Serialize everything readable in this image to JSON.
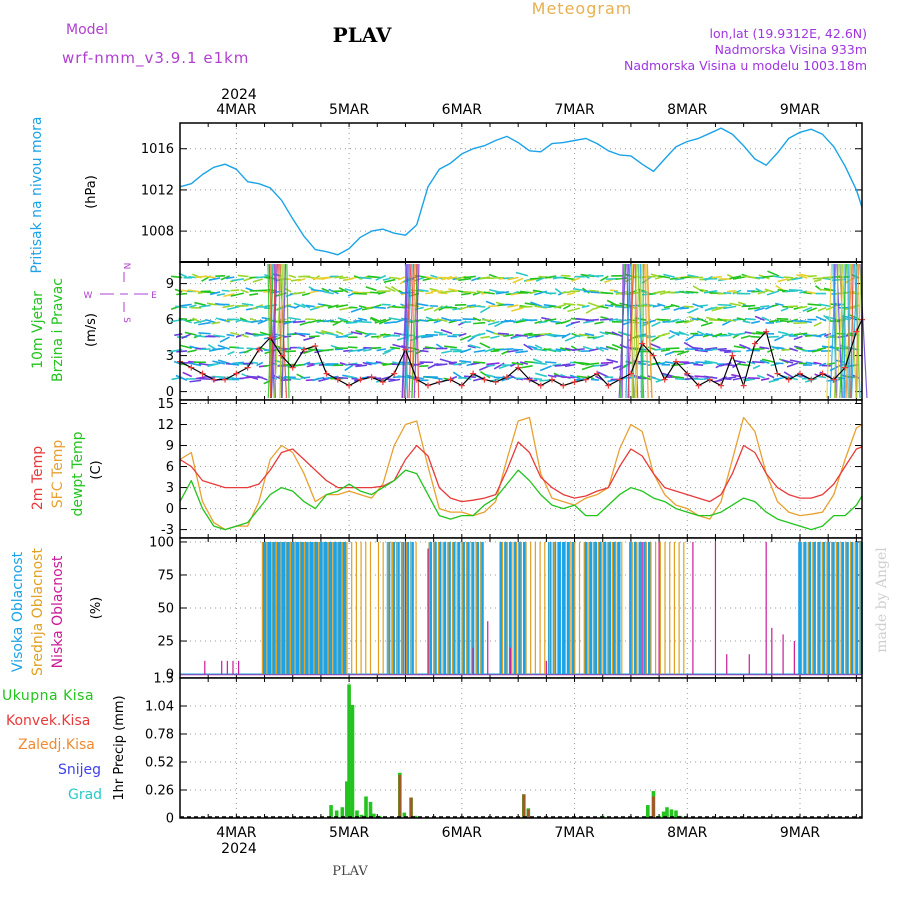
{
  "header": {
    "model_label": "Model",
    "model_name": "wrf-nmm_v3.9.1 e1km",
    "station": "PLAV",
    "meteogram_label": "Meteogram",
    "lonlat": "lon,lat (19.9312E, 42.6N)",
    "elevation": "Nadmorska Visina 933m",
    "model_elevation": "Nadmorska Visina u modelu 1003.18m"
  },
  "footer": {
    "station": "PLAV",
    "watermark": "made by Angel"
  },
  "time_axis": {
    "year": "2024",
    "day_labels": [
      "4MAR",
      "5MAR",
      "6MAR",
      "7MAR",
      "8MAR",
      "9MAR"
    ],
    "day_positions": [
      4,
      5,
      6,
      7,
      8,
      9
    ],
    "range": [
      3.5,
      9.55
    ]
  },
  "colors": {
    "pressure": "#1aa3e8",
    "temp2m": "#e83a3a",
    "sfc_temp": "#e8a030",
    "dewpt": "#22c41d",
    "high_cloud": "#1aa3e8",
    "mid_cloud": "#e0a020",
    "low_cloud": "#cc1a99",
    "total_precip": "#22c41d",
    "conv_precip": "#e83a3a",
    "freezing": "#f08a30",
    "snow": "#4040ee",
    "graupel": "#2ac8c8",
    "wind_label": "#22c41d",
    "purple_label": "#a035e0",
    "model_label": "#b040d0",
    "meteogram": "#e8b050"
  },
  "chart_data": [
    {
      "type": "line",
      "panel": "pressure",
      "ylabel_main": "Pritisak na nivou mora",
      "ylabel_unit": "(hPa)",
      "yticks": [
        "1008",
        "1012",
        "1016"
      ],
      "ylim": [
        1005,
        1018.5
      ],
      "grid": true,
      "series": [
        {
          "x": [
            3.5,
            3.6,
            3.7,
            3.8,
            3.9,
            4.0,
            4.1,
            4.2,
            4.3,
            4.4,
            4.5,
            4.6,
            4.7,
            4.8,
            4.9,
            5.0,
            5.1,
            5.2,
            5.3,
            5.4,
            5.5,
            5.6,
            5.7,
            5.8,
            5.9,
            6.0,
            6.1,
            6.2,
            6.3,
            6.4,
            6.5,
            6.6,
            6.7,
            6.8,
            6.9,
            7.0,
            7.1,
            7.2,
            7.3,
            7.4,
            7.5,
            7.6,
            7.7,
            7.8,
            7.9,
            8.0,
            8.1,
            8.2,
            8.3,
            8.4,
            8.5,
            8.6,
            8.7,
            8.8,
            8.9,
            9.0,
            9.1,
            9.2,
            9.3,
            9.4,
            9.5,
            9.55
          ],
          "y": [
            1012.3,
            1012.6,
            1013.5,
            1014.2,
            1014.5,
            1014.0,
            1012.8,
            1012.6,
            1012.2,
            1011.0,
            1009.2,
            1007.5,
            1006.2,
            1006.0,
            1005.7,
            1006.3,
            1007.4,
            1008.0,
            1008.2,
            1007.8,
            1007.6,
            1008.6,
            1012.3,
            1014.0,
            1014.6,
            1015.5,
            1016.0,
            1016.3,
            1016.8,
            1017.2,
            1016.6,
            1015.8,
            1015.7,
            1016.5,
            1016.6,
            1016.8,
            1017.0,
            1016.5,
            1015.8,
            1015.4,
            1015.3,
            1014.5,
            1013.8,
            1015.0,
            1016.2,
            1016.7,
            1017.0,
            1017.5,
            1018.0,
            1017.4,
            1016.3,
            1015.0,
            1014.4,
            1015.6,
            1017.0,
            1017.6,
            1017.9,
            1017.4,
            1016.2,
            1014.3,
            1012.0,
            1010.3
          ]
        }
      ]
    },
    {
      "type": "line",
      "panel": "wind",
      "ylabel_main": "10m Vjetar",
      "ylabel_main2": "Brzina i Pravac",
      "ylabel_unit": "(m/s)",
      "compass": {
        "n": "N",
        "s": "S",
        "w": "W",
        "e": "E"
      },
      "yticks": [
        "0",
        "3",
        "6",
        "9"
      ],
      "ylim": [
        -0.7,
        10.8
      ],
      "grid": true,
      "series": [
        {
          "name": "speed",
          "x": [
            3.5,
            3.6,
            3.7,
            3.8,
            3.9,
            4.0,
            4.1,
            4.2,
            4.3,
            4.4,
            4.5,
            4.6,
            4.7,
            4.8,
            4.9,
            5.0,
            5.1,
            5.2,
            5.3,
            5.4,
            5.5,
            5.6,
            5.7,
            5.8,
            5.9,
            6.0,
            6.1,
            6.2,
            6.3,
            6.4,
            6.5,
            6.6,
            6.7,
            6.8,
            6.9,
            7.0,
            7.1,
            7.2,
            7.3,
            7.4,
            7.5,
            7.6,
            7.7,
            7.8,
            7.9,
            8.0,
            8.1,
            8.2,
            8.3,
            8.4,
            8.5,
            8.6,
            8.7,
            8.8,
            8.9,
            9.0,
            9.1,
            9.2,
            9.3,
            9.4,
            9.5,
            9.55
          ],
          "y": [
            2.5,
            2.0,
            1.5,
            1.0,
            1.0,
            1.5,
            2.0,
            3.5,
            4.5,
            3.0,
            2.0,
            3.5,
            3.8,
            1.5,
            1.0,
            0.5,
            1.0,
            1.2,
            0.8,
            1.5,
            3.5,
            1.0,
            0.5,
            0.8,
            1.0,
            0.5,
            1.5,
            1.0,
            0.8,
            1.2,
            2.0,
            1.0,
            0.5,
            1.0,
            0.5,
            0.8,
            1.0,
            1.5,
            0.5,
            1.0,
            1.5,
            4.0,
            3.0,
            1.0,
            2.5,
            1.5,
            0.5,
            1.0,
            0.5,
            3.0,
            0.5,
            4.0,
            5.0,
            1.5,
            1.0,
            1.5,
            1.0,
            1.5,
            1.0,
            2.0,
            5.0,
            6.0
          ]
        }
      ]
    },
    {
      "type": "line",
      "panel": "temperature",
      "ylabel_a": "2m Temp",
      "ylabel_b": "SFC Temp",
      "ylabel_c": "dewpt Temp",
      "ylabel_unit": "(C)",
      "yticks": [
        "-3",
        "0",
        "3",
        "6",
        "9",
        "12",
        "15"
      ],
      "ylim": [
        -4.2,
        15.5
      ],
      "grid": true,
      "series": [
        {
          "name": "2m Temp",
          "x": [
            3.5,
            3.6,
            3.7,
            3.8,
            3.9,
            4.0,
            4.1,
            4.2,
            4.3,
            4.4,
            4.5,
            4.6,
            4.7,
            4.8,
            4.9,
            5.0,
            5.1,
            5.2,
            5.3,
            5.4,
            5.5,
            5.6,
            5.7,
            5.8,
            5.9,
            6.0,
            6.1,
            6.2,
            6.3,
            6.4,
            6.5,
            6.6,
            6.7,
            6.8,
            6.9,
            7.0,
            7.1,
            7.2,
            7.3,
            7.4,
            7.5,
            7.6,
            7.7,
            7.8,
            7.9,
            8.0,
            8.1,
            8.2,
            8.3,
            8.4,
            8.5,
            8.6,
            8.7,
            8.8,
            8.9,
            9.0,
            9.1,
            9.2,
            9.3,
            9.4,
            9.5,
            9.55
          ],
          "y": [
            7.0,
            6.0,
            4.0,
            3.5,
            3.0,
            3.0,
            3.0,
            3.5,
            5.5,
            8.0,
            8.5,
            7.0,
            5.5,
            4.0,
            3.0,
            3.0,
            3.0,
            3.0,
            3.2,
            4.0,
            7.0,
            9.0,
            7.5,
            3.0,
            1.5,
            1.0,
            1.2,
            1.5,
            2.0,
            5.5,
            9.5,
            8.0,
            4.5,
            3.0,
            2.0,
            1.5,
            1.8,
            2.5,
            3.0,
            6.0,
            8.5,
            7.5,
            5.0,
            3.0,
            2.5,
            2.0,
            1.5,
            1.0,
            2.0,
            5.0,
            9.0,
            8.0,
            5.0,
            3.0,
            2.0,
            1.5,
            1.5,
            2.0,
            3.5,
            6.0,
            8.5,
            8.8
          ]
        },
        {
          "name": "SFC Temp",
          "x": [
            3.5,
            3.6,
            3.7,
            3.8,
            3.9,
            4.0,
            4.1,
            4.2,
            4.3,
            4.4,
            4.5,
            4.6,
            4.7,
            4.8,
            4.9,
            5.0,
            5.1,
            5.2,
            5.3,
            5.4,
            5.5,
            5.6,
            5.7,
            5.8,
            5.9,
            6.0,
            6.1,
            6.2,
            6.3,
            6.4,
            6.5,
            6.6,
            6.7,
            6.8,
            6.9,
            7.0,
            7.1,
            7.2,
            7.3,
            7.4,
            7.5,
            7.6,
            7.7,
            7.8,
            7.9,
            8.0,
            8.1,
            8.2,
            8.3,
            8.4,
            8.5,
            8.6,
            8.7,
            8.8,
            8.9,
            9.0,
            9.1,
            9.2,
            9.3,
            9.4,
            9.5,
            9.55
          ],
          "y": [
            7.0,
            8.0,
            1.0,
            -2.0,
            -3.0,
            -2.5,
            -2.5,
            1.0,
            7.0,
            9.0,
            8.0,
            5.0,
            1.0,
            2.0,
            2.0,
            2.5,
            2.0,
            1.5,
            3.5,
            9.0,
            12.0,
            12.5,
            6.0,
            0.0,
            -0.5,
            -0.5,
            -1.0,
            -0.5,
            1.0,
            7.0,
            12.5,
            13.0,
            5.0,
            1.5,
            1.0,
            0.5,
            1.5,
            2.0,
            3.0,
            8.5,
            12.0,
            11.0,
            5.0,
            2.0,
            0.5,
            0.0,
            -1.0,
            -1.5,
            1.0,
            7.0,
            13.0,
            11.0,
            5.0,
            1.0,
            -0.5,
            -1.0,
            -0.8,
            -0.5,
            2.0,
            7.0,
            11.5,
            12.0
          ]
        },
        {
          "name": "dewpt Temp",
          "x": [
            3.5,
            3.6,
            3.7,
            3.8,
            3.9,
            4.0,
            4.1,
            4.2,
            4.3,
            4.4,
            4.5,
            4.6,
            4.7,
            4.8,
            4.9,
            5.0,
            5.1,
            5.2,
            5.3,
            5.4,
            5.5,
            5.6,
            5.7,
            5.8,
            5.9,
            6.0,
            6.1,
            6.2,
            6.3,
            6.4,
            6.5,
            6.6,
            6.7,
            6.8,
            6.9,
            7.0,
            7.1,
            7.2,
            7.3,
            7.4,
            7.5,
            7.6,
            7.7,
            7.8,
            7.9,
            8.0,
            8.1,
            8.2,
            8.3,
            8.4,
            8.5,
            8.6,
            8.7,
            8.8,
            8.9,
            9.0,
            9.1,
            9.2,
            9.3,
            9.4,
            9.5,
            9.55
          ],
          "y": [
            1.0,
            4.0,
            0.0,
            -2.5,
            -3.0,
            -2.5,
            -2.0,
            0.0,
            2.0,
            3.0,
            2.5,
            1.0,
            0.0,
            2.0,
            2.5,
            3.5,
            2.5,
            2.0,
            3.0,
            4.0,
            5.5,
            5.0,
            2.0,
            -1.0,
            -1.5,
            -1.0,
            -1.0,
            0.5,
            1.5,
            3.5,
            5.5,
            4.0,
            2.0,
            0.5,
            0.0,
            0.5,
            -1.0,
            -1.0,
            0.5,
            2.0,
            3.0,
            2.5,
            1.5,
            1.0,
            0.0,
            -0.5,
            -1.0,
            -1.0,
            -0.5,
            0.5,
            1.5,
            1.0,
            -0.5,
            -1.5,
            -2.0,
            -2.5,
            -3.0,
            -2.5,
            -1.0,
            -1.0,
            0.5,
            1.8
          ]
        }
      ]
    },
    {
      "type": "bar",
      "panel": "clouds",
      "ylabel_a": "Visoka Oblacnost",
      "ylabel_b": "Srednja Oblacnost",
      "ylabel_c": "Niska Oblacnost",
      "ylabel_unit": "(%)",
      "yticks": [
        "0",
        "25",
        "50",
        "75",
        "100"
      ],
      "ylim": [
        -3,
        103
      ],
      "grid": true,
      "series": [
        {
          "name": "Visoka Oblacnost",
          "segments": [
            [
              4.25,
              5.0,
              100
            ],
            [
              5.35,
              5.6,
              100
            ],
            [
              5.72,
              6.2,
              100
            ],
            [
              6.35,
              6.6,
              100
            ],
            [
              6.78,
              7.0,
              100
            ],
            [
              7.1,
              7.42,
              100
            ],
            [
              7.5,
              7.7,
              100
            ],
            [
              9.0,
              9.55,
              100
            ]
          ]
        },
        {
          "name": "Srednja Oblacnost",
          "segments": [
            [
              4.22,
              5.18,
              100
            ],
            [
              5.25,
              5.62,
              100
            ],
            [
              5.7,
              6.18,
              100
            ],
            [
              6.35,
              6.85,
              100
            ],
            [
              6.95,
              7.45,
              100
            ],
            [
              7.5,
              8.0,
              100
            ],
            [
              9.02,
              9.55,
              100
            ]
          ]
        },
        {
          "name": "Niska Oblacnost",
          "spikes": [
            [
              3.72,
              10
            ],
            [
              3.87,
              10
            ],
            [
              3.92,
              10
            ],
            [
              3.97,
              10
            ],
            [
              4.02,
              10
            ],
            [
              5.5,
              100
            ],
            [
              5.7,
              95
            ],
            [
              6.1,
              20
            ],
            [
              6.23,
              40
            ],
            [
              6.43,
              20
            ],
            [
              6.75,
              10
            ],
            [
              7.6,
              100
            ],
            [
              7.75,
              100
            ],
            [
              8.05,
              100
            ],
            [
              8.25,
              100
            ],
            [
              8.35,
              15
            ],
            [
              8.55,
              15
            ],
            [
              8.7,
              100
            ],
            [
              8.75,
              35
            ],
            [
              8.85,
              30
            ],
            [
              8.95,
              25
            ]
          ]
        }
      ]
    },
    {
      "type": "bar",
      "panel": "precipitation",
      "ylabel_unit": "1hr Precip (mm)",
      "legend": [
        "Ukupna Kisa",
        "Konvek.Kisa",
        "Zaledj.Kisa",
        "Snijeg",
        "Grad"
      ],
      "yticks": [
        "0",
        "0.26",
        "0.52",
        "0.78",
        "1.04",
        "1.3"
      ],
      "ylim": [
        0,
        1.3
      ],
      "grid": true,
      "series": [
        {
          "name": "Ukupna Kisa",
          "x": [
            4.84,
            4.89,
            4.94,
            4.98,
            5.0,
            5.03,
            5.07,
            5.11,
            5.15,
            5.19,
            5.22,
            5.27,
            5.45,
            5.49,
            5.55,
            5.59,
            6.55,
            6.59,
            7.25,
            7.65,
            7.7,
            7.75,
            7.79,
            7.82,
            7.86,
            7.9,
            7.94
          ],
          "y": [
            0.12,
            0.07,
            0.1,
            0.34,
            1.24,
            1.05,
            0.07,
            0.03,
            0.2,
            0.15,
            0.04,
            0.02,
            0.42,
            0.05,
            0.19,
            0.02,
            0.22,
            0.09,
            0.02,
            0.12,
            0.25,
            0.02,
            0.06,
            0.1,
            0.08,
            0.07,
            0.02
          ]
        },
        {
          "name": "Konvek.Kisa",
          "x": [
            5.45,
            5.55,
            6.55,
            6.59,
            7.7
          ],
          "y": [
            0.4,
            0.19,
            0.22,
            0.08,
            0.2
          ]
        }
      ]
    }
  ]
}
